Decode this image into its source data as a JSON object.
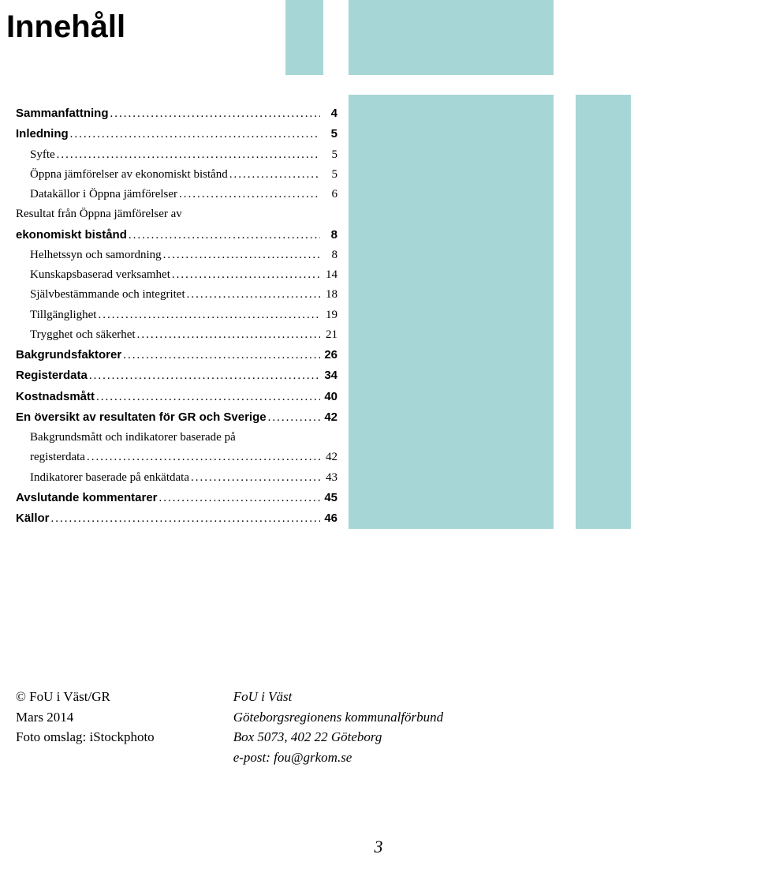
{
  "colors": {
    "accent_box": "#a6d6d6",
    "background": "#ffffff",
    "text": "#000000"
  },
  "heading": "Innehåll",
  "toc": [
    {
      "label": "Sammanfattning",
      "page": "4",
      "bold": true,
      "indent": false
    },
    {
      "label": "Inledning",
      "page": "5",
      "bold": true,
      "indent": false
    },
    {
      "label": "Syfte",
      "page": "5",
      "bold": false,
      "indent": true
    },
    {
      "label": "Öppna jämförelser av ekonomiskt bistånd",
      "page": "5",
      "bold": false,
      "indent": true
    },
    {
      "label": "Datakällor i Öppna jämförelser",
      "page": "6",
      "bold": false,
      "indent": true
    },
    {
      "label_line1": "Resultat från Öppna jämförelser av",
      "label_line2": "ekonomiskt bistånd",
      "page": "8",
      "bold": true,
      "indent": false,
      "wrap": true
    },
    {
      "label": "Helhetssyn och samordning",
      "page": "8",
      "bold": false,
      "indent": true
    },
    {
      "label": "Kunskapsbaserad verksamhet",
      "page": "14",
      "bold": false,
      "indent": true
    },
    {
      "label": "Självbestämmande och integritet",
      "page": "18",
      "bold": false,
      "indent": true
    },
    {
      "label": "Tillgänglighet",
      "page": "19",
      "bold": false,
      "indent": true
    },
    {
      "label": "Trygghet och säkerhet",
      "page": "21",
      "bold": false,
      "indent": true
    },
    {
      "label": "Bakgrundsfaktorer",
      "page": "26",
      "bold": true,
      "indent": false
    },
    {
      "label": "Registerdata",
      "page": "34",
      "bold": true,
      "indent": false
    },
    {
      "label": "Kostnadsmått",
      "page": "40",
      "bold": true,
      "indent": false
    },
    {
      "label": "En översikt av resultaten för GR och Sverige",
      "page": "42",
      "bold": true,
      "indent": false
    },
    {
      "label_line1": "Bakgrundsmått och indikatorer baserade på",
      "label_line2": "registerdata",
      "page": "42",
      "bold": false,
      "indent": true,
      "wrap": true
    },
    {
      "label": "Indikatorer baserade på enkätdata",
      "page": "43",
      "bold": false,
      "indent": true
    },
    {
      "label": "Avslutande kommentarer",
      "page": "45",
      "bold": true,
      "indent": false
    },
    {
      "label": "Källor",
      "page": "46",
      "bold": true,
      "indent": false
    }
  ],
  "footer": {
    "left": {
      "line1": "© FoU i Väst/GR",
      "line2": "Mars 2014",
      "line3": "Foto omslag: iStockphoto"
    },
    "right": {
      "line1": "FoU i Väst",
      "line2": "Göteborgsregionens kommunalförbund",
      "line3": "Box 5073, 402 22 Göteborg",
      "line4": "e-post: fou@grkom.se"
    }
  },
  "page_number": "3"
}
